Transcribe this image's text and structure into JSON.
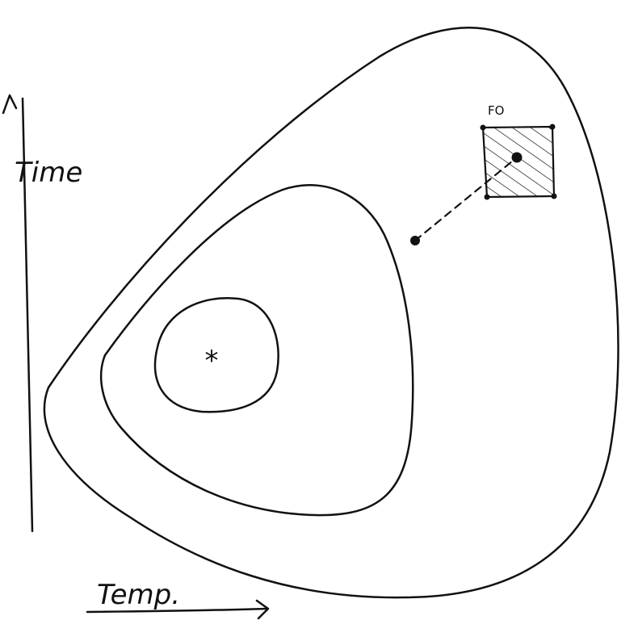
{
  "axes": {
    "y_label": "Time",
    "x_label": "Temp."
  },
  "annotations": {
    "region_label": "FO",
    "center_marker": "*"
  },
  "colors": {
    "ink": "#111111",
    "background": "#ffffff"
  }
}
